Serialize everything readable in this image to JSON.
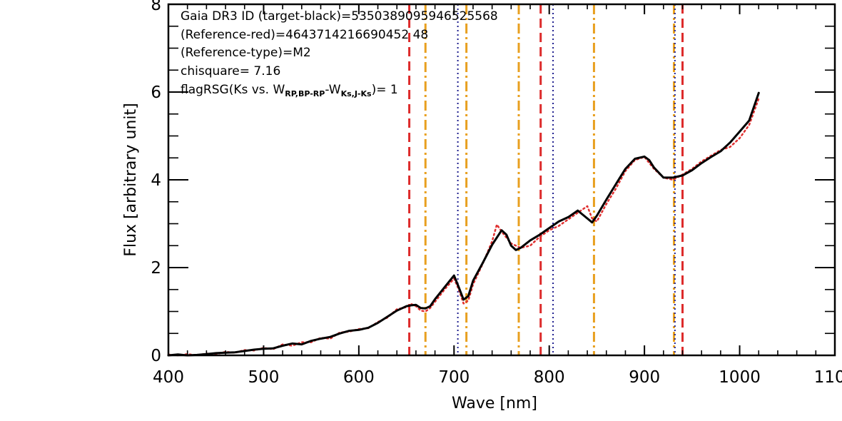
{
  "chart_data": {
    "type": "line",
    "xlabel": "Wave [nm]",
    "ylabel": "Flux [arbitrary unit]",
    "xlim": [
      400,
      1100
    ],
    "ylim": [
      0,
      8
    ],
    "x_ticks": [
      400,
      500,
      600,
      700,
      800,
      900,
      1000,
      1100
    ],
    "x_tick_labels": [
      "400",
      "500",
      "600",
      "700",
      "800",
      "900",
      "1000",
      "1100"
    ],
    "y_ticks": [
      0,
      2,
      4,
      6,
      8
    ],
    "y_tick_labels": [
      "0",
      "2",
      "4",
      "6",
      "8"
    ],
    "annotations": {
      "line1": "Gaia DR3 ID (target-black)=5350389095946525568",
      "line2": "(Reference-red)=4643714216690452 48",
      "line3": "(Reference-type)=M2",
      "line4": "chisquare= 7.16",
      "line5_main": "flagRSG(Ks vs. W",
      "line5_sub1": "RP,BP-RP",
      "line5_mid": "-W",
      "line5_sub2": "Ks,J-Ks",
      "line5_end": ")= 1"
    },
    "series": [
      {
        "color": "#000000",
        "style": "solid",
        "x": [
          400,
          410,
          420,
          430,
          440,
          450,
          460,
          470,
          480,
          490,
          500,
          510,
          520,
          530,
          540,
          550,
          560,
          570,
          580,
          590,
          600,
          610,
          620,
          630,
          640,
          650,
          655,
          660,
          665,
          670,
          675,
          680,
          690,
          700,
          705,
          710,
          715,
          720,
          730,
          740,
          750,
          755,
          760,
          765,
          770,
          780,
          790,
          800,
          810,
          820,
          830,
          840,
          845,
          850,
          860,
          870,
          880,
          890,
          900,
          905,
          910,
          920,
          930,
          940,
          950,
          960,
          970,
          980,
          990,
          1000,
          1010,
          1020
        ],
        "y": [
          0.0,
          0.02,
          0.0,
          0.01,
          0.03,
          0.05,
          0.06,
          0.07,
          0.1,
          0.13,
          0.15,
          0.16,
          0.22,
          0.27,
          0.25,
          0.33,
          0.38,
          0.42,
          0.5,
          0.56,
          0.58,
          0.63,
          0.74,
          0.88,
          1.02,
          1.12,
          1.14,
          1.15,
          1.08,
          1.07,
          1.12,
          1.28,
          1.55,
          1.82,
          1.55,
          1.27,
          1.35,
          1.7,
          2.1,
          2.52,
          2.85,
          2.75,
          2.5,
          2.4,
          2.45,
          2.62,
          2.75,
          2.9,
          3.05,
          3.15,
          3.3,
          3.12,
          3.03,
          3.18,
          3.55,
          3.9,
          4.25,
          4.48,
          4.53,
          4.45,
          4.28,
          4.05,
          4.05,
          4.1,
          4.22,
          4.38,
          4.52,
          4.65,
          4.85,
          5.1,
          5.35,
          5.98
        ]
      },
      {
        "color": "#e03030",
        "style": "dotted",
        "x": [
          400,
          410,
          420,
          430,
          440,
          450,
          460,
          470,
          480,
          490,
          500,
          510,
          520,
          530,
          540,
          550,
          560,
          570,
          580,
          590,
          600,
          610,
          620,
          630,
          640,
          650,
          655,
          660,
          665,
          670,
          675,
          680,
          690,
          700,
          705,
          710,
          715,
          720,
          730,
          740,
          745,
          750,
          760,
          770,
          780,
          790,
          800,
          810,
          820,
          830,
          840,
          845,
          850,
          860,
          870,
          880,
          890,
          900,
          910,
          920,
          930,
          940,
          950,
          960,
          970,
          980,
          990,
          1000,
          1010,
          1020
        ],
        "y": [
          0.02,
          0.0,
          0.03,
          0.0,
          0.04,
          0.03,
          0.08,
          0.06,
          0.12,
          0.11,
          0.17,
          0.14,
          0.25,
          0.22,
          0.3,
          0.3,
          0.4,
          0.38,
          0.52,
          0.54,
          0.6,
          0.62,
          0.76,
          0.86,
          1.05,
          1.1,
          1.17,
          1.12,
          1.02,
          1.0,
          1.08,
          1.22,
          1.5,
          1.75,
          1.5,
          1.18,
          1.25,
          1.62,
          2.08,
          2.6,
          2.98,
          2.82,
          2.55,
          2.45,
          2.5,
          2.7,
          2.85,
          2.95,
          3.1,
          3.25,
          3.4,
          3.12,
          3.05,
          3.45,
          3.8,
          4.2,
          4.45,
          4.52,
          4.25,
          4.05,
          4.0,
          4.12,
          4.25,
          4.42,
          4.55,
          4.68,
          4.75,
          4.95,
          5.25,
          5.85
        ]
      }
    ],
    "vertical_lines": [
      {
        "x": 653,
        "color": "#dd2b2b",
        "style": "dashed"
      },
      {
        "x": 670,
        "color": "#e8a020",
        "style": "dashdot"
      },
      {
        "x": 704,
        "color": "#1f1f8f",
        "style": "dotted"
      },
      {
        "x": 713,
        "color": "#e8a020",
        "style": "dashdot"
      },
      {
        "x": 768,
        "color": "#e8a020",
        "style": "dashdot"
      },
      {
        "x": 791,
        "color": "#dd2b2b",
        "style": "dashed"
      },
      {
        "x": 804,
        "color": "#1f1f8f",
        "style": "dotted"
      },
      {
        "x": 847,
        "color": "#e8a020",
        "style": "dashdot"
      },
      {
        "x": 931,
        "color": "#e8a020",
        "style": "dashdot"
      },
      {
        "x": 932,
        "color": "#1f1f8f",
        "style": "dotted"
      },
      {
        "x": 940,
        "color": "#dd2b2b",
        "style": "dashed"
      }
    ],
    "grid": false,
    "legend": "none"
  }
}
